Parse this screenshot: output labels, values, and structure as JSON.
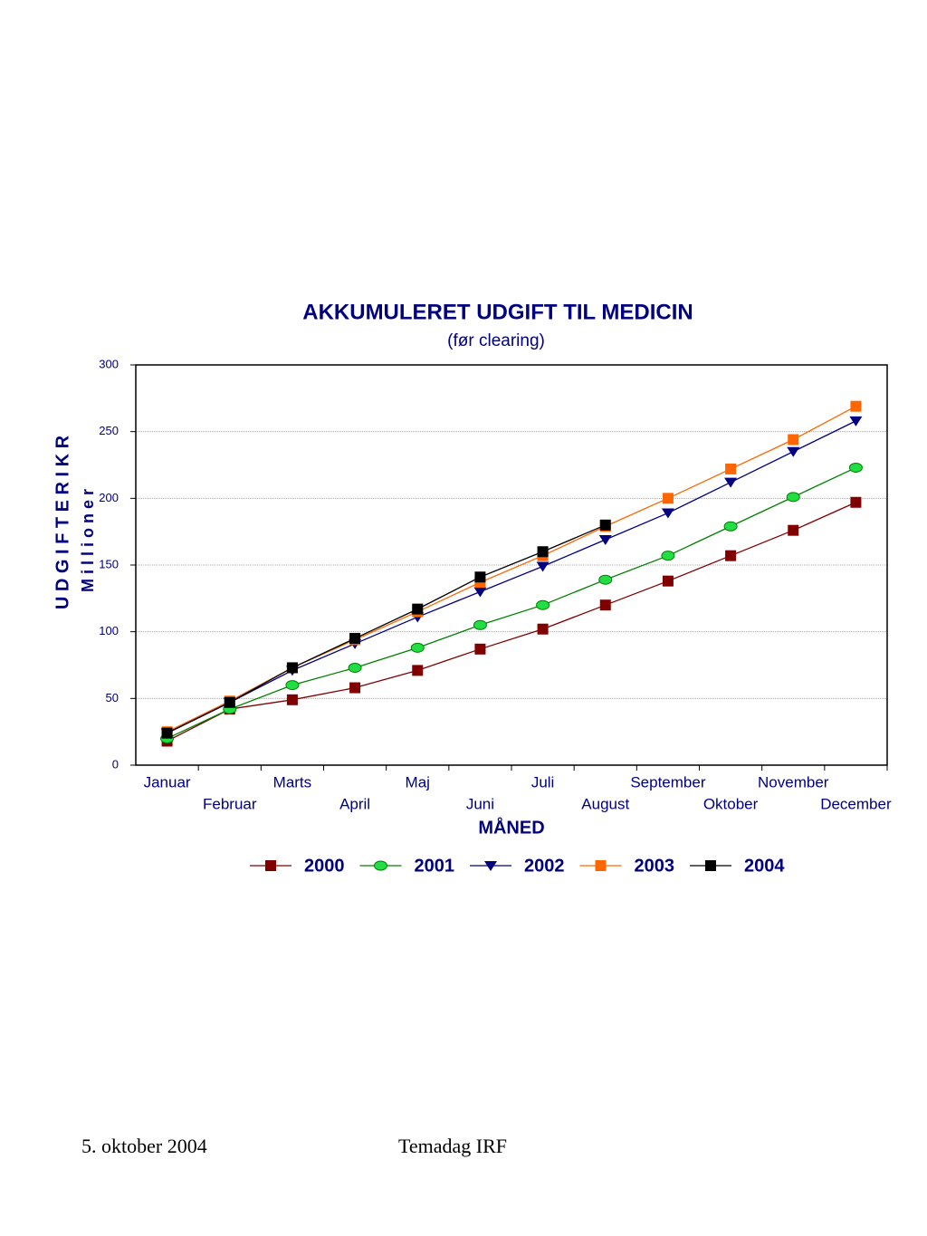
{
  "chart_data": {
    "type": "line",
    "title": "AKKUMULERET UDGIFT TIL MEDICIN",
    "subtitle": "(før clearing)",
    "x_label": "MÅNED",
    "y_label": [
      "U D G I F T E R   I   K R",
      "M i l l i o n e r"
    ],
    "categories": [
      "Januar",
      "Februar",
      "Marts",
      "April",
      "Maj",
      "Juni",
      "Juli",
      "August",
      "September",
      "Oktober",
      "November",
      "December"
    ],
    "series": [
      {
        "name": "2000",
        "color": "#800000",
        "marker": "square",
        "values": [
          18,
          42,
          49,
          58,
          71,
          87,
          102,
          120,
          138,
          157,
          176,
          197
        ]
      },
      {
        "name": "2001",
        "color": "#008000",
        "marker_fill": "#22dd44",
        "marker": "ellipse",
        "values": [
          20,
          42,
          60,
          73,
          88,
          105,
          120,
          139,
          157,
          179,
          201,
          223
        ]
      },
      {
        "name": "2002",
        "color": "#000080",
        "marker": "triangle-down",
        "values": [
          24,
          47,
          71,
          91,
          111,
          130,
          149,
          169,
          189,
          212,
          235,
          258
        ]
      },
      {
        "name": "2003",
        "color": "#ff6600",
        "marker": "square",
        "values": [
          25,
          48,
          73,
          94,
          115,
          137,
          157,
          179,
          200,
          222,
          244,
          269
        ]
      },
      {
        "name": "2004",
        "color": "#000000",
        "marker": "square",
        "values": [
          24,
          47,
          73,
          95,
          117,
          141,
          160,
          180,
          null,
          null,
          null,
          null
        ]
      }
    ],
    "ylim": [
      0,
      300
    ],
    "yticks": [
      0,
      50,
      100,
      150,
      200,
      250,
      300
    ],
    "grid": true
  },
  "footer": {
    "date": "5. oktober 2004",
    "event": "Temadag IRF"
  }
}
